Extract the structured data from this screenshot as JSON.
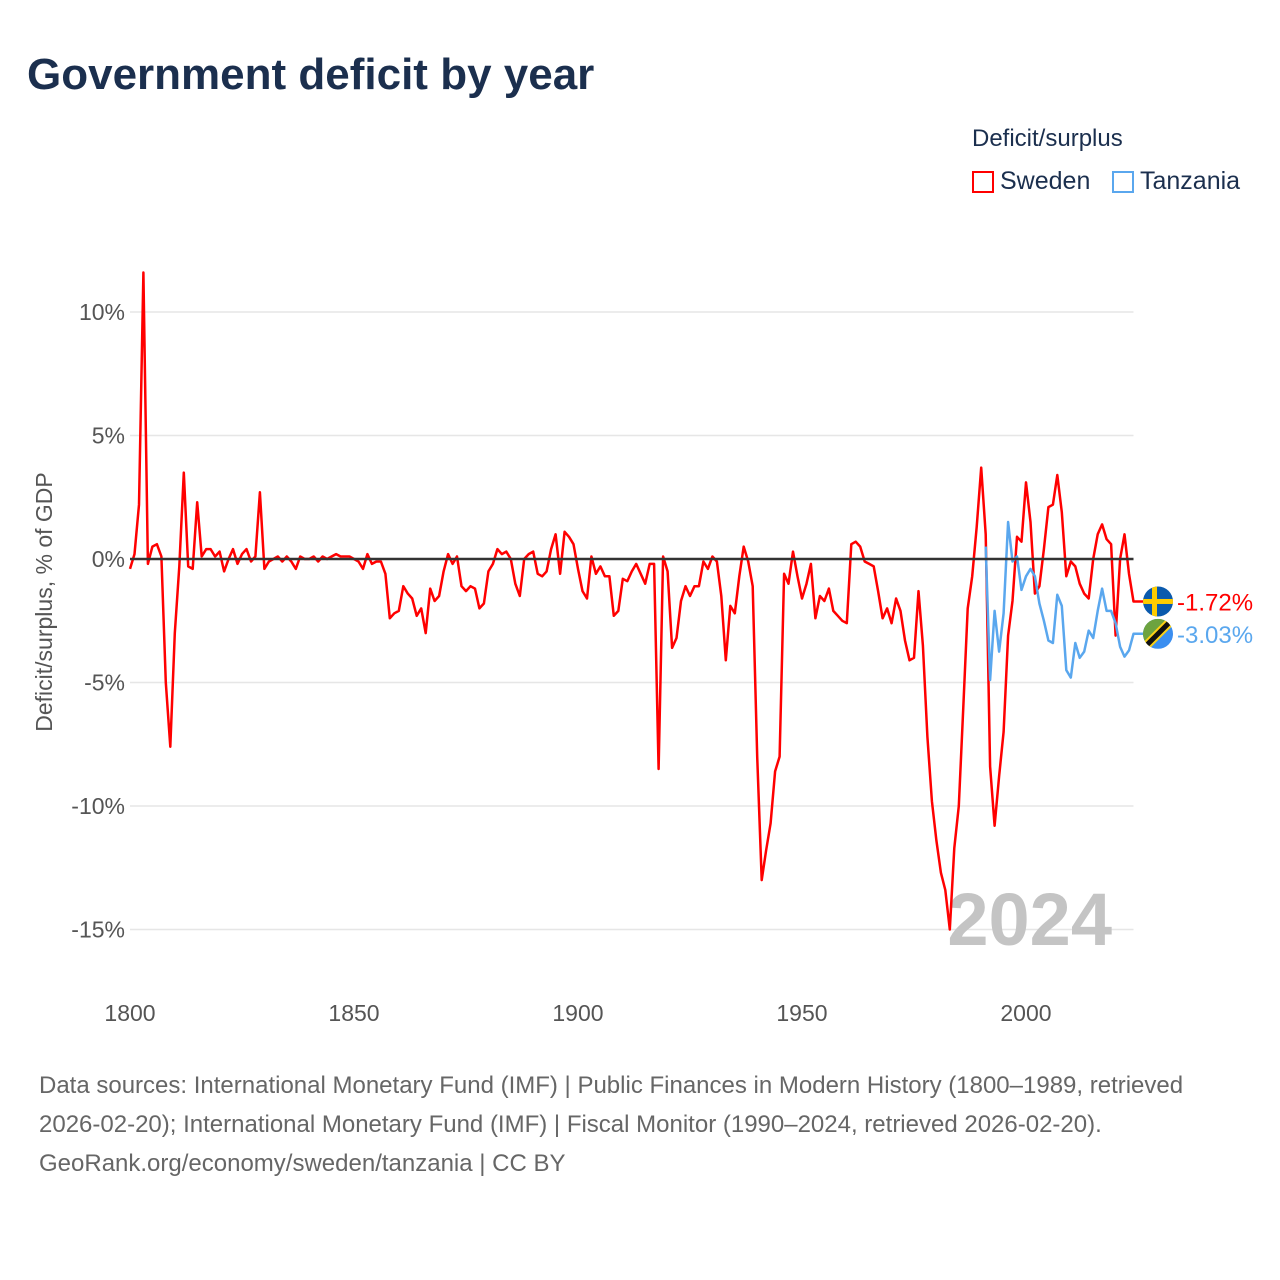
{
  "title": "Government deficit by year",
  "legend": {
    "title": "Deficit/surplus",
    "items": [
      {
        "name": "Sweden",
        "color": "#ff0000"
      },
      {
        "name": "Tanzania",
        "color": "#5aa7ee"
      }
    ]
  },
  "footer": {
    "sources": "Data sources: International Monetary Fund (IMF) | Public Finances in Modern History (1800–1989, retrieved 2026-02-20); International Monetary Fund (IMF) | Fiscal Monitor (1990–2024, retrieved 2026-02-20).",
    "credit": "GeoRank.org/economy/sweden/tanzania | CC BY"
  },
  "chart_data": {
    "type": "line",
    "title": "Government deficit by year",
    "xlabel": "",
    "ylabel": "Deficit/surplus, % of GDP",
    "xlim": [
      1800,
      2024
    ],
    "ylim": [
      -16.5,
      12
    ],
    "x_ticks": [
      1800,
      1850,
      1900,
      1950,
      2000
    ],
    "x_tick_labels": [
      "1800",
      "1850",
      "1900",
      "1950",
      "2000"
    ],
    "y_ticks": [
      10,
      5,
      0,
      -5,
      -10,
      -15
    ],
    "y_tick_labels": [
      "10%",
      "5%",
      "0%",
      "-5%",
      "-10%",
      "-15%"
    ],
    "current_year_label": "2024",
    "series": [
      {
        "name": "Sweden",
        "color": "#ff0000",
        "start_year": 1800,
        "end_label": "-1.72%",
        "flag": "sweden",
        "values": [
          -0.4,
          0.2,
          2.2,
          11.6,
          -0.2,
          0.5,
          0.6,
          0.1,
          -5,
          -7.6,
          -3,
          -0.3,
          3.5,
          -0.3,
          -0.4,
          2.3,
          0.1,
          0.4,
          0.4,
          0.1,
          0.3,
          -0.5,
          0,
          0.4,
          -0.2,
          0.2,
          0.4,
          -0.1,
          0.1,
          2.7,
          -0.4,
          -0.1,
          0,
          0.1,
          -0.1,
          0.1,
          -0.1,
          -0.4,
          0.1,
          0,
          0,
          0.1,
          -0.1,
          0.1,
          0,
          0.1,
          0.2,
          0.1,
          0.1,
          0.1,
          0,
          -0.1,
          -0.4,
          0.2,
          -0.2,
          -0.1,
          -0.1,
          -0.6,
          -2.4,
          -2.2,
          -2.1,
          -1.1,
          -1.4,
          -1.6,
          -2.3,
          -2,
          -3,
          -1.2,
          -1.7,
          -1.5,
          -0.5,
          0.2,
          -0.2,
          0.1,
          -1.1,
          -1.3,
          -1.1,
          -1.2,
          -2,
          -1.8,
          -0.5,
          -0.2,
          0.4,
          0.2,
          0.3,
          0,
          -1,
          -1.5,
          0,
          0.2,
          0.3,
          -0.6,
          -0.7,
          -0.5,
          0.4,
          1,
          -0.6,
          1.1,
          0.9,
          0.6,
          -0.4,
          -1.3,
          -1.6,
          0.1,
          -0.6,
          -0.3,
          -0.7,
          -0.7,
          -2.3,
          -2.1,
          -0.8,
          -0.9,
          -0.5,
          -0.2,
          -0.6,
          -1,
          -0.2,
          -0.2,
          -8.5,
          0.1,
          -0.5,
          -3.6,
          -3.2,
          -1.7,
          -1.1,
          -1.5,
          -1.1,
          -1.1,
          -0.1,
          -0.4,
          0.1,
          -0.1,
          -1.5,
          -4.1,
          -1.9,
          -2.2,
          -0.7,
          0.5,
          -0.1,
          -1.1,
          -8,
          -13,
          -11.8,
          -10.7,
          -8.6,
          -8,
          -0.6,
          -1,
          0.3,
          -0.7,
          -1.6,
          -1,
          -0.2,
          -2.4,
          -1.5,
          -1.7,
          -1.2,
          -2.1,
          -2.3,
          -2.5,
          -2.6,
          0.6,
          0.7,
          0.5,
          -0.1,
          -0.2,
          -0.3,
          -1.3,
          -2.4,
          -2,
          -2.6,
          -1.6,
          -2.1,
          -3.3,
          -4.1,
          -4,
          -1.3,
          -3.5,
          -7.2,
          -9.8,
          -11.4,
          -12.7,
          -13.4,
          -15,
          -11.7,
          -10,
          -6,
          -2,
          -0.7,
          1.3,
          3.7,
          1,
          -8.4,
          -10.8,
          -8.8,
          -7,
          -3.1,
          -1.7,
          0.9,
          0.7,
          3.1,
          1.5,
          -1.4,
          -1.1,
          0.4,
          2.1,
          2.2,
          3.4,
          1.9,
          -0.7,
          -0.1,
          -0.3,
          -1,
          -1.4,
          -1.6,
          0,
          1,
          1.4,
          0.8,
          0.6,
          -3.1,
          0,
          1,
          -0.6,
          -1.72
        ]
      },
      {
        "name": "Tanzania",
        "color": "#5aa7ee",
        "start_year": 1991,
        "end_label": "-3.03%",
        "flag": "tanzania",
        "values": [
          0.5,
          -4.9,
          -2.1,
          -3.75,
          -2.2,
          1.5,
          -0.1,
          0.1,
          -1.25,
          -0.7,
          -0.4,
          -0.7,
          -1.8,
          -2.5,
          -3.3,
          -3.4,
          -1.45,
          -1.9,
          -4.5,
          -4.8,
          -3.4,
          -4.0,
          -3.75,
          -2.9,
          -3.2,
          -2.1,
          -1.2,
          -2.1,
          -2.1,
          -2.6,
          -3.55,
          -3.95,
          -3.7,
          -3.03
        ]
      }
    ]
  }
}
